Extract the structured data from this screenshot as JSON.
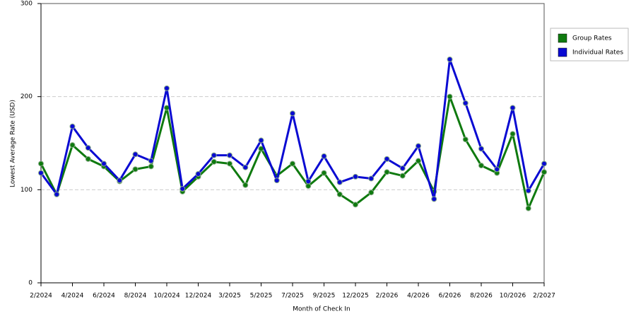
{
  "chart_data": {
    "type": "line",
    "x_label": "Month of Check In",
    "y_label": "Lowest Average Rate (USD)",
    "categories": [
      "2/2024",
      null,
      "4/2024",
      null,
      "6/2024",
      null,
      "8/2024",
      null,
      "10/2024",
      null,
      "12/2024",
      null,
      "3/2025",
      null,
      "5/2025",
      null,
      "7/2025",
      null,
      "9/2025",
      null,
      "12/2025",
      null,
      "2/2026",
      null,
      "4/2026",
      null,
      "6/2026",
      null,
      "8/2026",
      null,
      "10/2026",
      null,
      "2/2027"
    ],
    "series": [
      {
        "name": "Group Rates",
        "color": "#0f7a0f",
        "values": [
          128,
          95,
          148,
          133,
          125,
          109,
          122,
          125,
          188,
          98,
          114,
          130,
          128,
          105,
          144,
          115,
          128,
          104,
          118,
          95,
          84,
          97,
          119,
          115,
          131,
          98,
          200,
          154,
          126,
          118,
          160,
          80,
          119
        ]
      },
      {
        "name": "Individual Rates",
        "color": "#0a0ad2",
        "values": [
          118,
          95,
          168,
          145,
          128,
          110,
          138,
          131,
          209,
          101,
          117,
          137,
          137,
          124,
          153,
          110,
          182,
          109,
          136,
          108,
          114,
          112,
          133,
          123,
          147,
          90,
          240,
          193,
          144,
          122,
          188,
          99,
          128
        ]
      }
    ],
    "ylim": [
      0,
      300
    ],
    "yticks": [
      0,
      100,
      200,
      300
    ],
    "grid": true,
    "legend": "top-right"
  }
}
